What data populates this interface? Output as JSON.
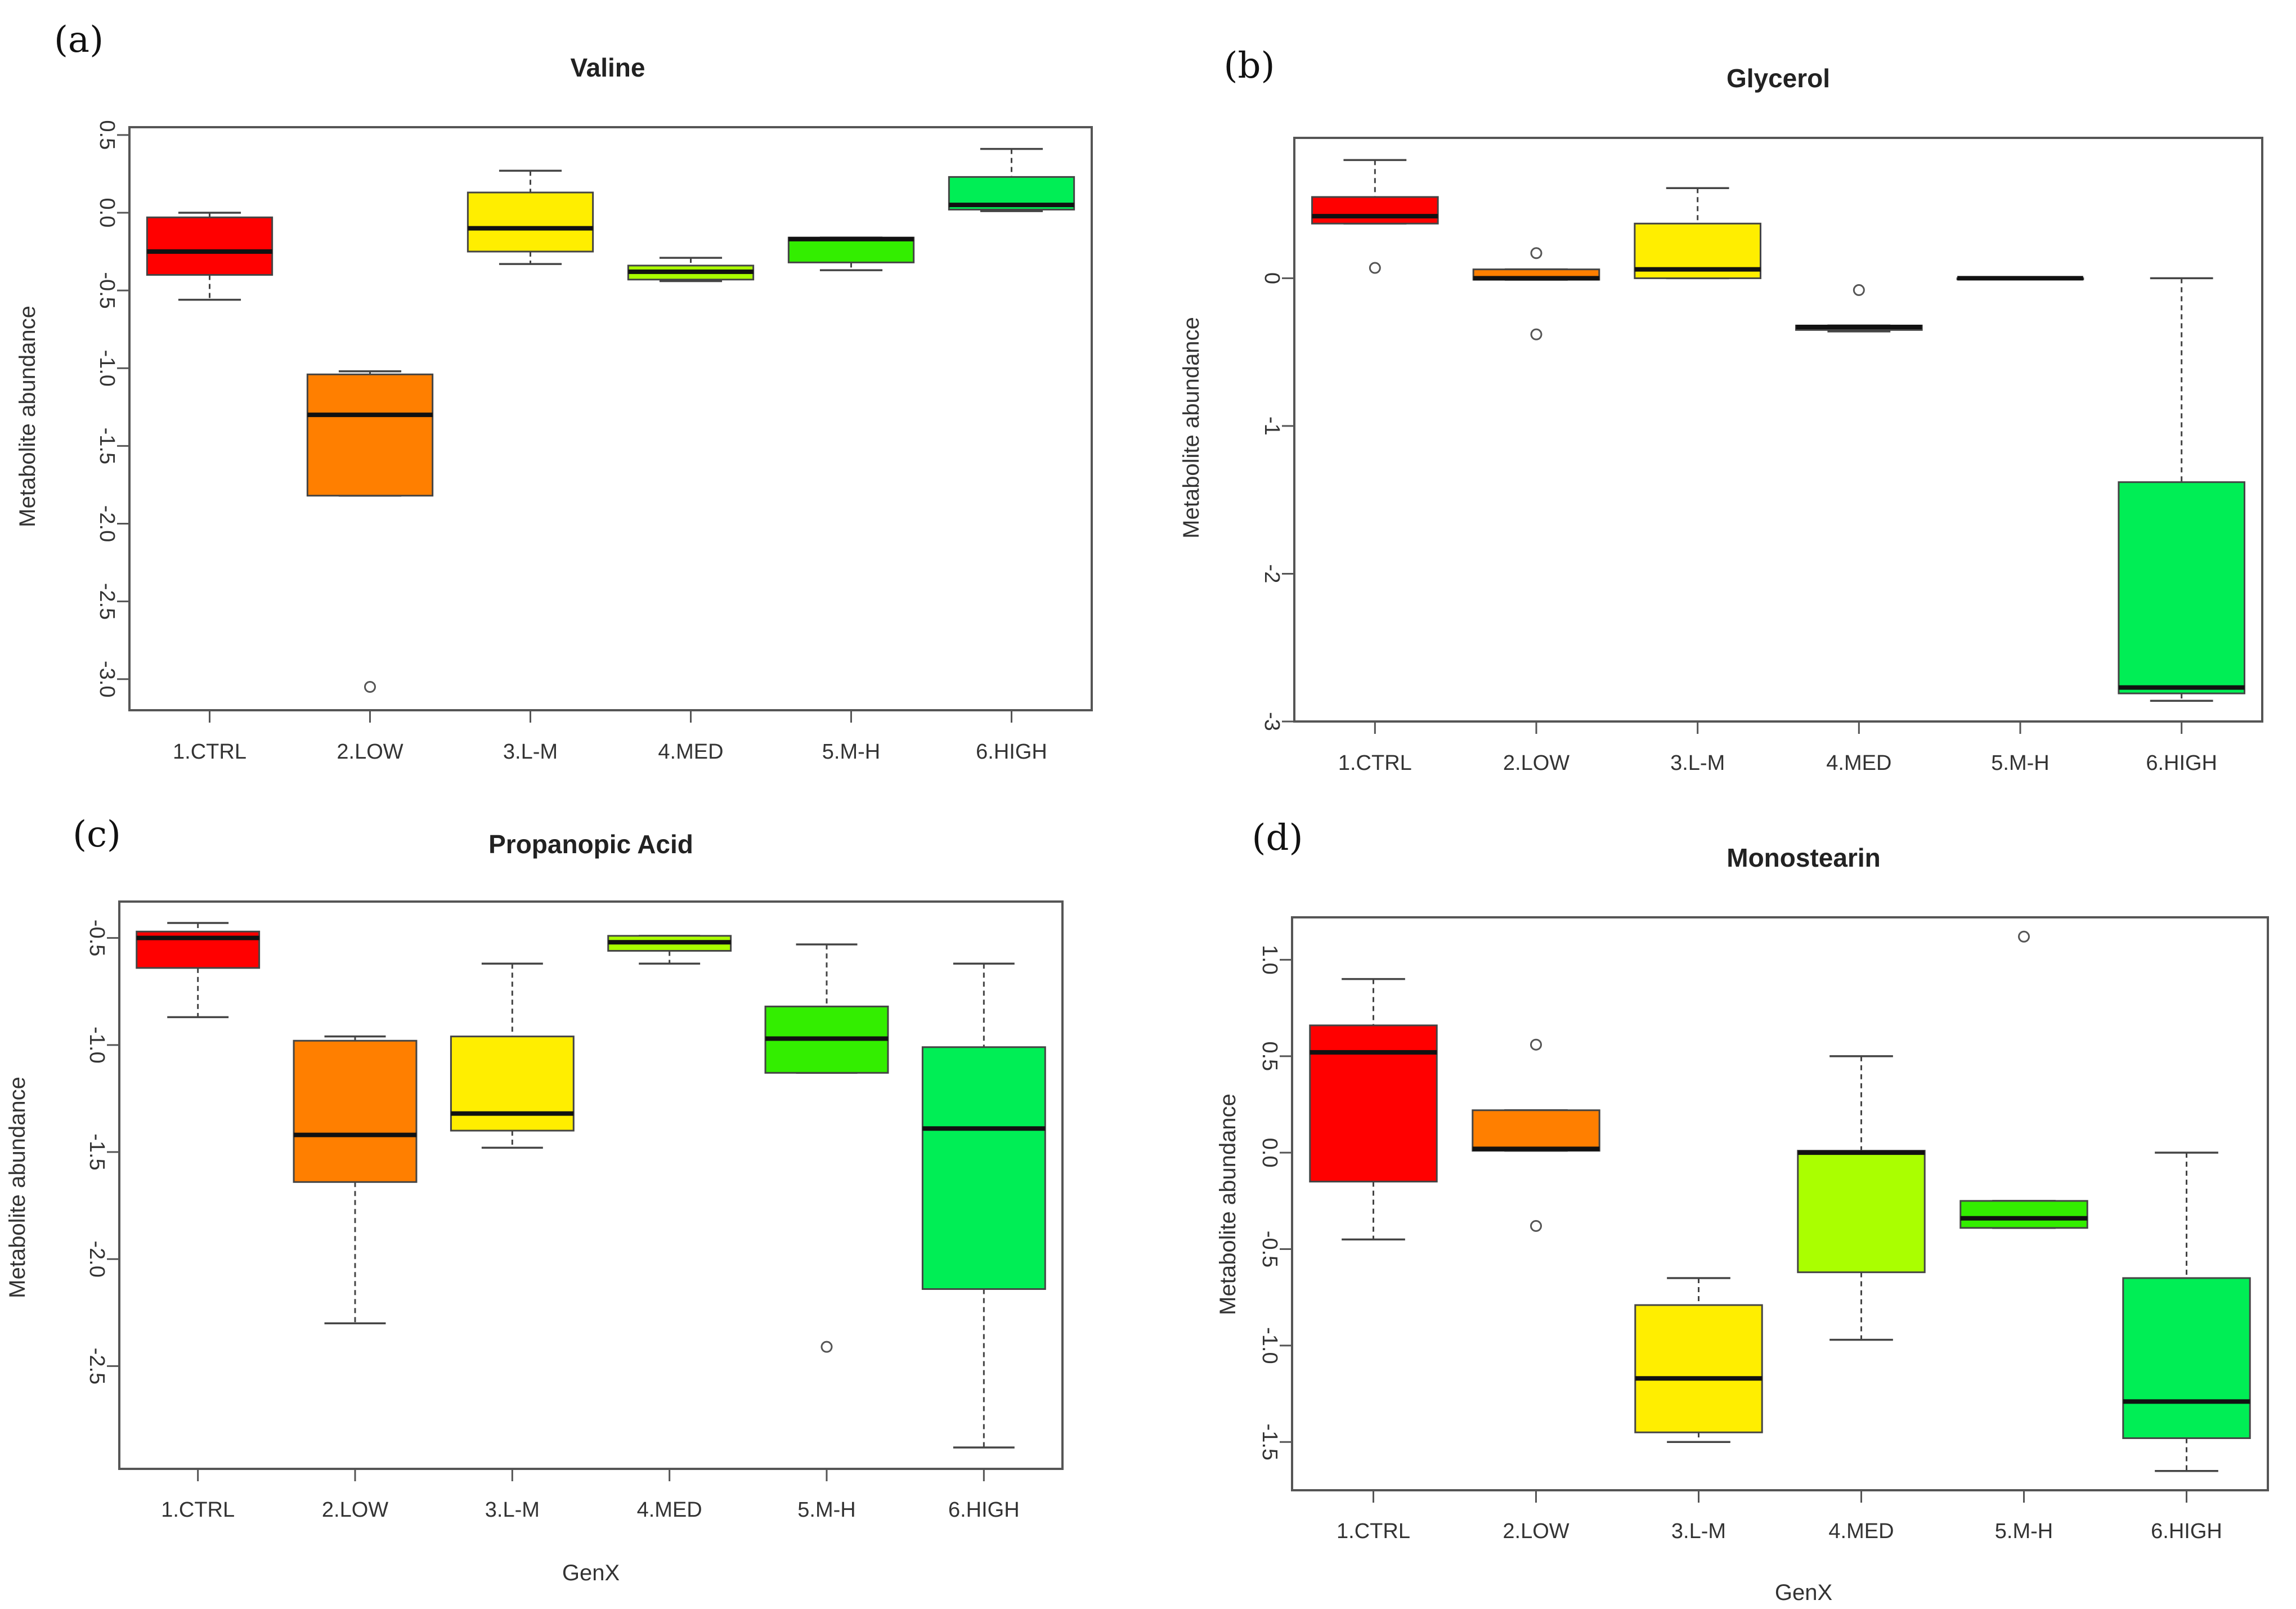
{
  "chart_data": [
    {
      "type": "boxplot",
      "panel": "(a)",
      "title": "Valine",
      "xlabel": "",
      "ylabel": "Metabolite abundance",
      "ylim": [
        -3.2,
        0.55
      ],
      "yticks": [
        0.5,
        0.0,
        -0.5,
        -1.0,
        -1.5,
        -2.0,
        -2.5,
        -3.0
      ],
      "ytick_labels": [
        "0.5",
        "0.0",
        "-0.5",
        "-1.0",
        "-1.5",
        "-2.0",
        "-2.5",
        "-3.0"
      ],
      "categories": [
        "1.CTRL",
        "2.LOW",
        "3.L-M",
        "4.MED",
        "5.M-H",
        "6.HIGH"
      ],
      "colors": [
        "#ff0000",
        "#ff7f00",
        "#ffee00",
        "#aaff00",
        "#33ee00",
        "#00ee55"
      ],
      "boxes": [
        {
          "min": -0.56,
          "q1": -0.4,
          "median": -0.25,
          "q3": -0.03,
          "max": 0.0,
          "outliers": []
        },
        {
          "min": -1.82,
          "q1": -1.82,
          "median": -1.3,
          "q3": -1.04,
          "max": -1.02,
          "outliers": [
            -3.05
          ]
        },
        {
          "min": -0.33,
          "q1": -0.25,
          "median": -0.1,
          "q3": 0.13,
          "max": 0.27,
          "outliers": []
        },
        {
          "min": -0.44,
          "q1": -0.43,
          "median": -0.38,
          "q3": -0.34,
          "max": -0.29,
          "outliers": []
        },
        {
          "min": -0.37,
          "q1": -0.32,
          "median": -0.17,
          "q3": -0.16,
          "max": -0.16,
          "outliers": []
        },
        {
          "min": 0.01,
          "q1": 0.02,
          "median": 0.05,
          "q3": 0.23,
          "max": 0.41,
          "outliers": []
        }
      ]
    },
    {
      "type": "boxplot",
      "panel": "(b)",
      "title": "Glycerol",
      "xlabel": "",
      "ylabel": "Metabolite abundance",
      "ylim": [
        -3.0,
        0.95
      ],
      "yticks": [
        0,
        -1,
        -2,
        -3
      ],
      "ytick_labels": [
        "0",
        "-1",
        "-2",
        "-3"
      ],
      "categories": [
        "1.CTRL",
        "2.LOW",
        "3.L-M",
        "4.MED",
        "5.M-H",
        "6.HIGH"
      ],
      "colors": [
        "#ff0000",
        "#ff7f00",
        "#ffee00",
        "#aaff00",
        "#33ee00",
        "#00ee55"
      ],
      "boxes": [
        {
          "min": 0.37,
          "q1": 0.37,
          "median": 0.42,
          "q3": 0.55,
          "max": 0.8,
          "outliers": [
            0.07
          ]
        },
        {
          "min": -0.01,
          "q1": -0.01,
          "median": 0.0,
          "q3": 0.06,
          "max": 0.06,
          "outliers": [
            0.17,
            -0.38
          ]
        },
        {
          "min": 0.0,
          "q1": 0.0,
          "median": 0.06,
          "q3": 0.37,
          "max": 0.61,
          "outliers": []
        },
        {
          "min": -0.36,
          "q1": -0.35,
          "median": -0.33,
          "q3": -0.32,
          "max": -0.32,
          "outliers": [
            -0.08
          ]
        },
        {
          "min": 0.0,
          "q1": 0.0,
          "median": 0.0,
          "q3": 0.0,
          "max": 0.0,
          "outliers": []
        },
        {
          "min": -2.86,
          "q1": -2.81,
          "median": -2.77,
          "q3": -1.38,
          "max": 0.0,
          "outliers": []
        }
      ]
    },
    {
      "type": "boxplot",
      "panel": "(c)",
      "title": "Propanopic Acid",
      "xlabel": "GenX",
      "ylabel": "Metabolite abundance",
      "ylim": [
        -2.98,
        -0.33
      ],
      "yticks": [
        -0.5,
        -1.0,
        -1.5,
        -2.0,
        -2.5
      ],
      "ytick_labels": [
        "-0.5",
        "-1.0",
        "-1.5",
        "-2.0",
        "-2.5"
      ],
      "categories": [
        "1.CTRL",
        "2.LOW",
        "3.L-M",
        "4.MED",
        "5.M-H",
        "6.HIGH"
      ],
      "colors": [
        "#ff0000",
        "#ff7f00",
        "#ffee00",
        "#aaff00",
        "#33ee00",
        "#00ee55"
      ],
      "boxes": [
        {
          "min": -0.87,
          "q1": -0.64,
          "median": -0.5,
          "q3": -0.47,
          "max": -0.43,
          "outliers": []
        },
        {
          "min": -2.3,
          "q1": -1.64,
          "median": -1.42,
          "q3": -0.98,
          "max": -0.96,
          "outliers": []
        },
        {
          "min": -1.48,
          "q1": -1.4,
          "median": -1.32,
          "q3": -0.96,
          "max": -0.62,
          "outliers": []
        },
        {
          "min": -0.62,
          "q1": -0.56,
          "median": -0.52,
          "q3": -0.49,
          "max": -0.49,
          "outliers": []
        },
        {
          "min": -1.13,
          "q1": -1.13,
          "median": -0.97,
          "q3": -0.82,
          "max": -0.53,
          "outliers": [
            -2.41
          ]
        },
        {
          "min": -2.88,
          "q1": -2.14,
          "median": -1.39,
          "q3": -1.01,
          "max": -0.62,
          "outliers": []
        }
      ]
    },
    {
      "type": "boxplot",
      "panel": "(d)",
      "title": "Monostearin",
      "xlabel": "GenX",
      "ylabel": "Metabolite abundance",
      "ylim": [
        -1.75,
        1.22
      ],
      "yticks": [
        1.0,
        0.5,
        0.0,
        -0.5,
        -1.0,
        -1.5
      ],
      "ytick_labels": [
        "1.0",
        "0.5",
        "0.0",
        "-0.5",
        "-1.0",
        "-1.5"
      ],
      "categories": [
        "1.CTRL",
        "2.LOW",
        "3.L-M",
        "4.MED",
        "5.M-H",
        "6.HIGH"
      ],
      "colors": [
        "#ff0000",
        "#ff7f00",
        "#ffee00",
        "#aaff00",
        "#33ee00",
        "#00ee55"
      ],
      "boxes": [
        {
          "min": -0.45,
          "q1": -0.15,
          "median": 0.52,
          "q3": 0.66,
          "max": 0.9,
          "outliers": []
        },
        {
          "min": 0.01,
          "q1": 0.01,
          "median": 0.02,
          "q3": 0.22,
          "max": 0.22,
          "outliers": [
            0.56,
            -0.38
          ]
        },
        {
          "min": -1.5,
          "q1": -1.45,
          "median": -1.17,
          "q3": -0.79,
          "max": -0.65,
          "outliers": []
        },
        {
          "min": -0.97,
          "q1": -0.62,
          "median": 0.0,
          "q3": 0.01,
          "max": 0.5,
          "outliers": []
        },
        {
          "min": -0.39,
          "q1": -0.39,
          "median": -0.34,
          "q3": -0.25,
          "max": -0.25,
          "outliers": [
            1.12
          ]
        },
        {
          "min": -1.65,
          "q1": -1.48,
          "median": -1.29,
          "q3": -0.65,
          "max": 0.0,
          "outliers": []
        }
      ]
    }
  ]
}
